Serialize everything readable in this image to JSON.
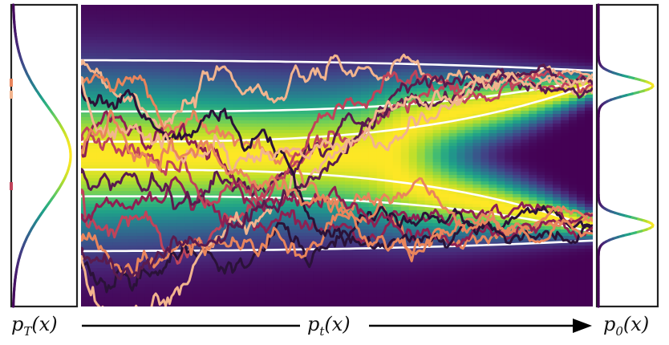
{
  "labels": {
    "left": {
      "base": "p",
      "sub": "T",
      "arg": "(x)"
    },
    "middle": {
      "base": "p",
      "sub": "t",
      "arg": "(x)"
    },
    "right": {
      "base": "p",
      "sub": "0",
      "arg": "(x)"
    }
  },
  "colors": {
    "panel_border": "#222222",
    "flow_line": "#ffffff",
    "arrow": "#000000",
    "path_colors": [
      "#f2b48e",
      "#e9855c",
      "#c0435a",
      "#8e2052",
      "#5a1b4e",
      "#2a1238"
    ]
  },
  "density": {
    "colormap": "viridis",
    "start_mixture": {
      "means": [
        0.0
      ],
      "stds": [
        0.42
      ]
    },
    "end_mixture": {
      "means": [
        -0.6,
        0.6
      ],
      "stds": [
        0.07,
        0.07
      ]
    }
  },
  "paths": {
    "count": 14,
    "noise_scale": 0.08
  }
}
